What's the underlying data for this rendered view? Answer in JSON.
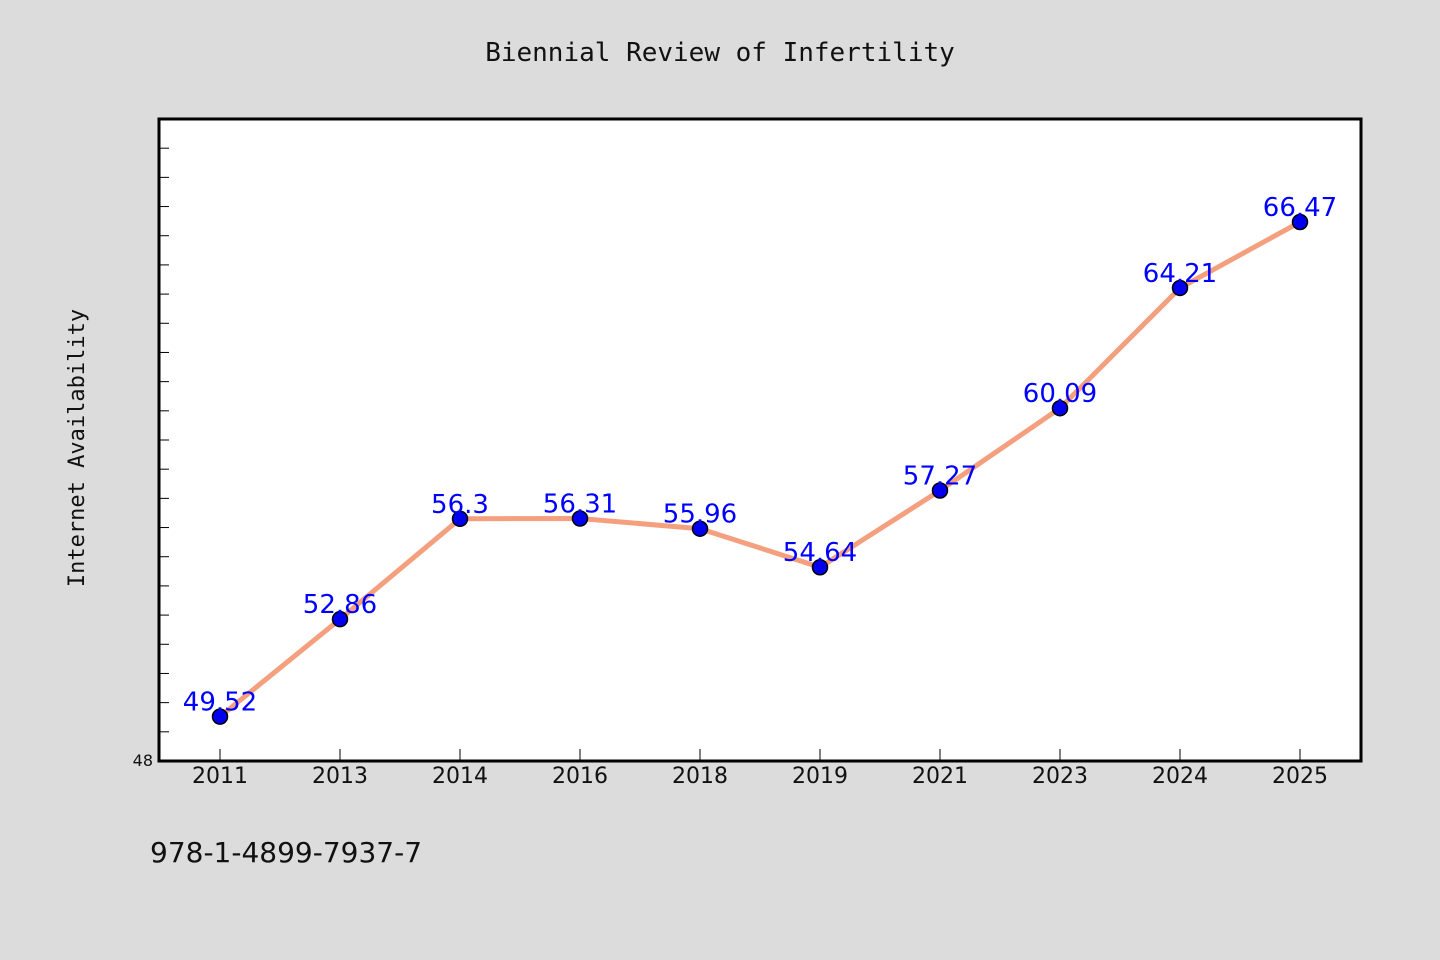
{
  "chart_data": {
    "type": "line",
    "title": "Biennial Review of Infertility",
    "xlabel": "",
    "ylabel": "Internet Availability",
    "categories": [
      "2011",
      "2013",
      "2014",
      "2016",
      "2018",
      "2019",
      "2021",
      "2023",
      "2024",
      "2025"
    ],
    "series": [
      {
        "values": [
          49.52,
          52.86,
          56.3,
          56.31,
          55.96,
          54.64,
          57.27,
          60.09,
          64.21,
          66.47
        ],
        "line_color": "#f4a07f",
        "marker_color": "#0000ee"
      }
    ],
    "data_labels": [
      "49.52",
      "52.86",
      "56.3",
      "56.31",
      "55.96",
      "54.64",
      "57.27",
      "60.09",
      "64.21",
      "66.47"
    ],
    "y_tick_label": "48",
    "ylim": [
      48,
      70
    ],
    "grid": false,
    "legend": "none"
  },
  "footer": {
    "text": "978-1-4899-7937-7"
  },
  "colors": {
    "background": "#dcdcdc",
    "plot_background": "#ffffff",
    "label_color": "#0000ff"
  }
}
